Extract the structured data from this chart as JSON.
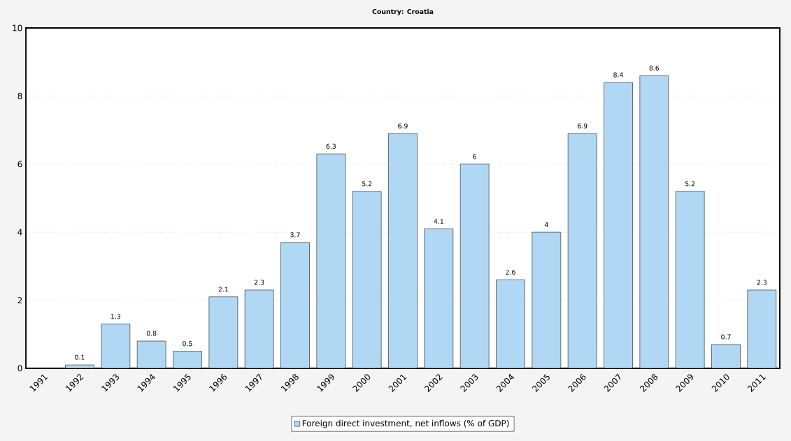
{
  "chart_data": {
    "type": "bar",
    "title": "Country: Croatia",
    "categories": [
      "1991",
      "1992",
      "1993",
      "1994",
      "1995",
      "1996",
      "1997",
      "1998",
      "1999",
      "2000",
      "2001",
      "2002",
      "2003",
      "2004",
      "2005",
      "2006",
      "2007",
      "2008",
      "2009",
      "2010",
      "2011"
    ],
    "series": [
      {
        "name": "Foreign direct investment, net inflows (% of GDP)",
        "color": "#b0d8f5",
        "values": [
          null,
          0.1,
          1.3,
          0.8,
          0.5,
          2.1,
          2.3,
          3.7,
          6.3,
          5.2,
          6.9,
          4.1,
          6,
          2.6,
          4,
          6.9,
          8.4,
          8.6,
          5.2,
          0.7,
          2.3
        ]
      }
    ],
    "ylim": [
      0,
      10
    ],
    "yticks": [
      0,
      2,
      4,
      6,
      8,
      10
    ],
    "grid": "y",
    "legend": "bottom",
    "data_labels": true
  }
}
